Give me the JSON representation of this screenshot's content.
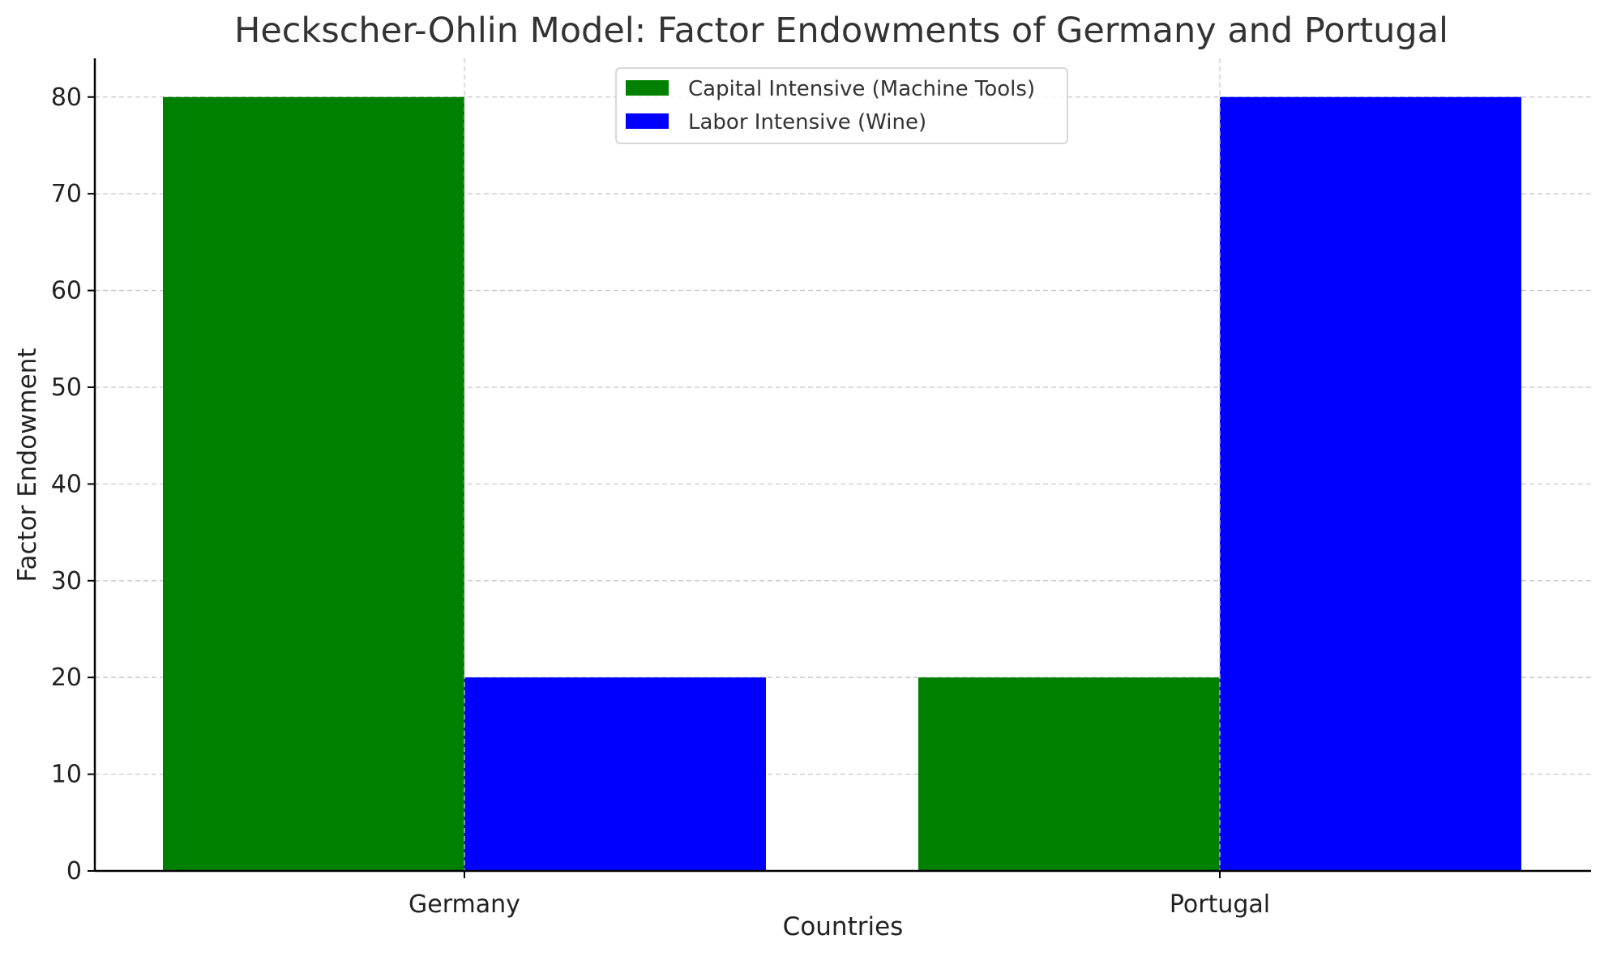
{
  "chart_data": {
    "type": "bar",
    "title": "Heckscher-Ohlin Model: Factor Endowments of Germany and Portugal",
    "xlabel": "Countries",
    "ylabel": "Factor Endowment",
    "categories": [
      "Germany",
      "Portugal"
    ],
    "series": [
      {
        "name": "Capital Intensive (Machine Tools)",
        "values": [
          80,
          20
        ],
        "color": "#008000"
      },
      {
        "name": "Labor Intensive (Wine)",
        "values": [
          20,
          80
        ],
        "color": "#0000ff"
      }
    ],
    "ylim": [
      0,
      84
    ],
    "yticks": [
      "0",
      "10",
      "20",
      "30",
      "40",
      "50",
      "60",
      "70",
      "80"
    ],
    "grid": true,
    "legend_position": "top-center"
  }
}
